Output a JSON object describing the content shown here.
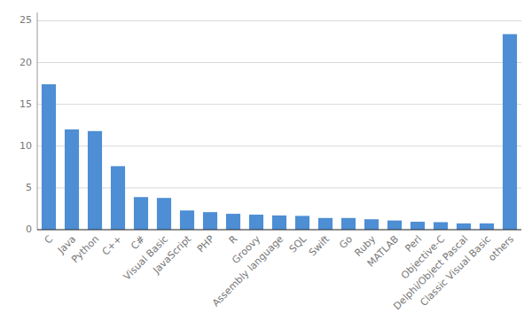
{
  "chart_data": {
    "type": "bar",
    "categories": [
      "C",
      "Java",
      "Python",
      "C++",
      "C#",
      "Visual Basic",
      "JavaScript",
      "PHP",
      "R",
      "Groovy",
      "Assembly language",
      "SQL",
      "Swift",
      "Go",
      "Ruby",
      "MATLAB",
      "Perl",
      "Objective-C",
      "Delphi/Object Pascal",
      "Classic Visual Basic",
      "others"
    ],
    "values": [
      17.4,
      12.0,
      11.8,
      7.6,
      3.9,
      3.8,
      2.3,
      2.1,
      1.9,
      1.8,
      1.7,
      1.65,
      1.4,
      1.4,
      1.25,
      1.1,
      0.95,
      0.9,
      0.75,
      0.75,
      23.4
    ],
    "color": "#4d8ed4",
    "ylim": [
      0,
      26
    ],
    "yticks": [
      0,
      5,
      10,
      15,
      20,
      25
    ],
    "grid": true
  }
}
